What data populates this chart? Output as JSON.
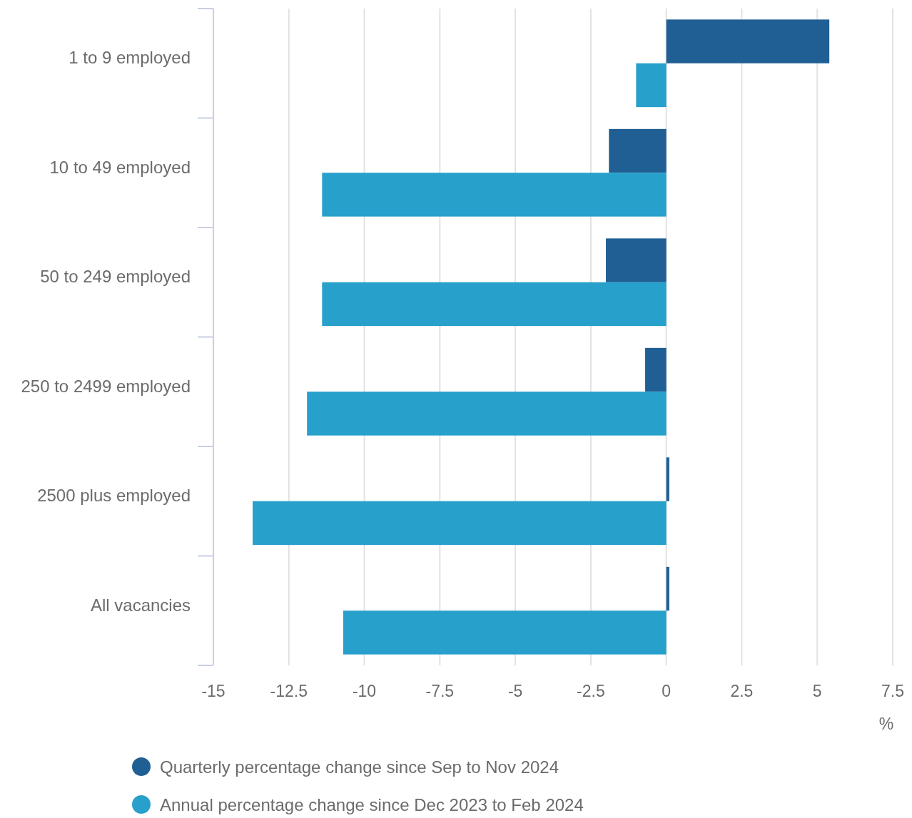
{
  "chart_data": {
    "type": "bar",
    "orientation": "horizontal",
    "xlabel": "%",
    "categories": [
      "1 to 9 employed",
      "10 to 49 employed",
      "50 to 249 employed",
      "250 to 2499 employed",
      "2500 plus employed",
      "All vacancies"
    ],
    "series": [
      {
        "name": "Quarterly percentage change since Sep to Nov 2024",
        "color": "#1f5f94",
        "values": [
          5.4,
          -1.9,
          -2.0,
          -0.7,
          0.1,
          0.1
        ]
      },
      {
        "name": "Annual percentage change since Dec 2023 to Feb 2024",
        "color": "#27a0cc",
        "values": [
          -1.0,
          -11.4,
          -11.4,
          -11.9,
          -13.7,
          -10.7
        ]
      }
    ],
    "xlim": [
      -15,
      7.5
    ],
    "xticks": [
      -15,
      -12.5,
      -10,
      -7.5,
      -5,
      -2.5,
      0,
      2.5,
      5,
      7.5
    ],
    "grid": "x",
    "legend": "bottom"
  }
}
